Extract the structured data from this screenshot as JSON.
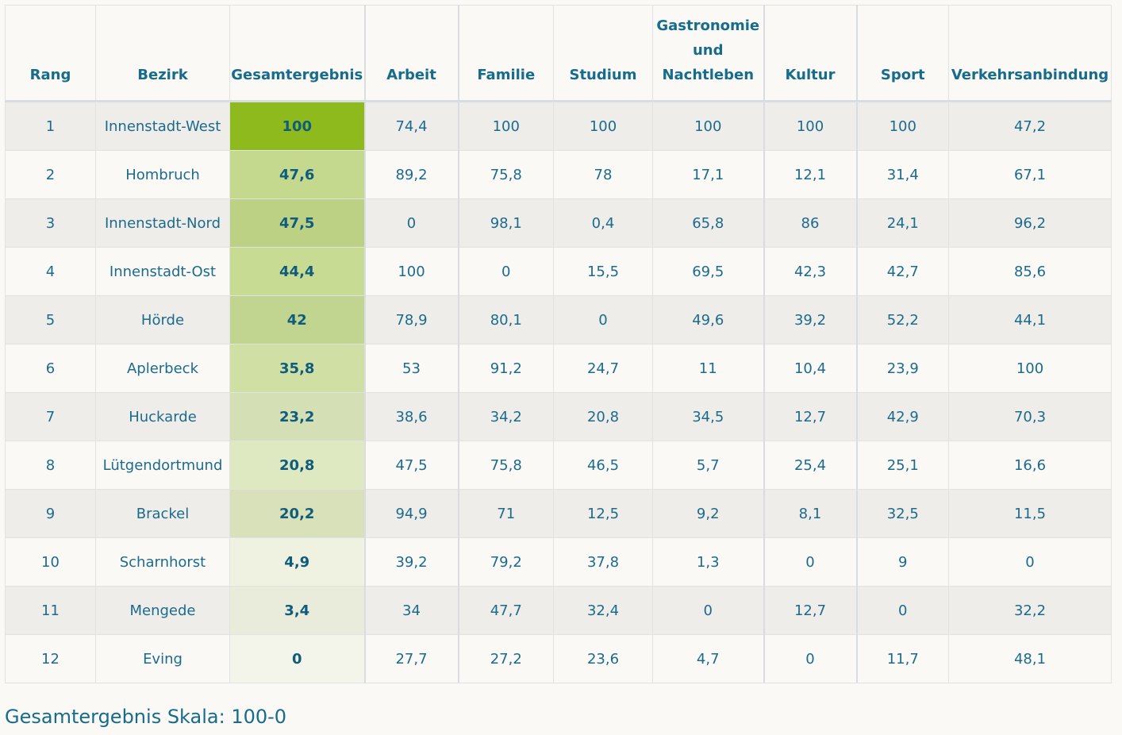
{
  "table": {
    "headers": {
      "rang": "Rang",
      "bezirk": "Bezirk",
      "gesamt": "Gesamtergebnis",
      "arbeit": "Arbeit",
      "familie": "Familie",
      "studium": "Studium",
      "gastro_1": "Gastronomie",
      "gastro_2": "und",
      "gastro_3": "Nachtleben",
      "kultur": "Kultur",
      "sport": "Sport",
      "verkehr": "Verkehrsanbindung"
    },
    "rows": [
      {
        "rang": "1",
        "bezirk": "Innenstadt-West",
        "gesamt": "100",
        "arbeit": "74,4",
        "familie": "100",
        "studium": "100",
        "gastro": "100",
        "kultur": "100",
        "sport": "100",
        "verkehr": "47,2",
        "score": 100
      },
      {
        "rang": "2",
        "bezirk": "Hombruch",
        "gesamt": "47,6",
        "arbeit": "89,2",
        "familie": "75,8",
        "studium": "78",
        "gastro": "17,1",
        "kultur": "12,1",
        "sport": "31,4",
        "verkehr": "67,1",
        "score": 47.6
      },
      {
        "rang": "3",
        "bezirk": "Innenstadt-Nord",
        "gesamt": "47,5",
        "arbeit": "0",
        "familie": "98,1",
        "studium": "0,4",
        "gastro": "65,8",
        "kultur": "86",
        "sport": "24,1",
        "verkehr": "96,2",
        "score": 47.5
      },
      {
        "rang": "4",
        "bezirk": "Innenstadt-Ost",
        "gesamt": "44,4",
        "arbeit": "100",
        "familie": "0",
        "studium": "15,5",
        "gastro": "69,5",
        "kultur": "42,3",
        "sport": "42,7",
        "verkehr": "85,6",
        "score": 44.4
      },
      {
        "rang": "5",
        "bezirk": "Hörde",
        "gesamt": "42",
        "arbeit": "78,9",
        "familie": "80,1",
        "studium": "0",
        "gastro": "49,6",
        "kultur": "39,2",
        "sport": "52,2",
        "verkehr": "44,1",
        "score": 42
      },
      {
        "rang": "6",
        "bezirk": "Aplerbeck",
        "gesamt": "35,8",
        "arbeit": "53",
        "familie": "91,2",
        "studium": "24,7",
        "gastro": "11",
        "kultur": "10,4",
        "sport": "23,9",
        "verkehr": "100",
        "score": 35.8
      },
      {
        "rang": "7",
        "bezirk": "Huckarde",
        "gesamt": "23,2",
        "arbeit": "38,6",
        "familie": "34,2",
        "studium": "20,8",
        "gastro": "34,5",
        "kultur": "12,7",
        "sport": "42,9",
        "verkehr": "70,3",
        "score": 23.2
      },
      {
        "rang": "8",
        "bezirk": "Lütgendortmund",
        "gesamt": "20,8",
        "arbeit": "47,5",
        "familie": "75,8",
        "studium": "46,5",
        "gastro": "5,7",
        "kultur": "25,4",
        "sport": "25,1",
        "verkehr": "16,6",
        "score": 20.8
      },
      {
        "rang": "9",
        "bezirk": "Brackel",
        "gesamt": "20,2",
        "arbeit": "94,9",
        "familie": "71",
        "studium": "12,5",
        "gastro": "9,2",
        "kultur": "8,1",
        "sport": "32,5",
        "verkehr": "11,5",
        "score": 20.2
      },
      {
        "rang": "10",
        "bezirk": "Scharnhorst",
        "gesamt": "4,9",
        "arbeit": "39,2",
        "familie": "79,2",
        "studium": "37,8",
        "gastro": "1,3",
        "kultur": "0",
        "sport": "9",
        "verkehr": "0",
        "score": 4.9
      },
      {
        "rang": "11",
        "bezirk": "Mengede",
        "gesamt": "3,4",
        "arbeit": "34",
        "familie": "47,7",
        "studium": "32,4",
        "gastro": "0",
        "kultur": "12,7",
        "sport": "0",
        "verkehr": "32,2",
        "score": 3.4
      },
      {
        "rang": "12",
        "bezirk": "Eving",
        "gesamt": "0",
        "arbeit": "27,7",
        "familie": "27,2",
        "studium": "23,6",
        "gastro": "4,7",
        "kultur": "0",
        "sport": "11,7",
        "verkehr": "48,1",
        "score": 0
      }
    ]
  },
  "colors": {
    "top_score": "#8fba1e",
    "low_score_tint": "#f4f5ea",
    "text": "#1c6b8c"
  },
  "caption": "Gesamtergebnis Skala: 100-0"
}
